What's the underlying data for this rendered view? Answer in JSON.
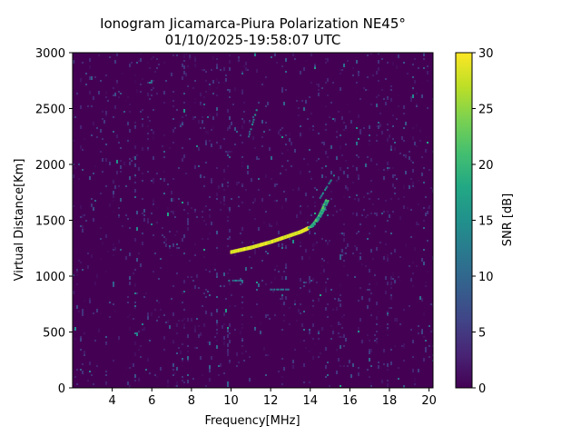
{
  "chart_data": {
    "type": "heatmap",
    "title": "Ionogram Jicamarca-Piura Polarization NE45°",
    "subtitle": "01/10/2025-19:58:07 UTC",
    "xlabel": "Frequency[MHz]",
    "ylabel": "Virtual Distance[Km]",
    "xlim": [
      2.0,
      20.2
    ],
    "ylim": [
      0,
      3000
    ],
    "xticks": [
      4,
      6,
      8,
      10,
      12,
      14,
      16,
      18,
      20
    ],
    "yticks": [
      0,
      500,
      1000,
      1500,
      2000,
      2500,
      3000
    ],
    "colorbar": {
      "label": "SNR [dB]",
      "range": [
        0,
        30
      ],
      "ticks": [
        0,
        5,
        10,
        15,
        20,
        25,
        30
      ],
      "colormap": "viridis"
    },
    "background": "low SNR noise (0–5 dB) with vertical interference stripes",
    "trace": {
      "points": [
        [
          10.0,
          1215
        ],
        [
          10.5,
          1235
        ],
        [
          11.0,
          1255
        ],
        [
          11.5,
          1280
        ],
        [
          12.0,
          1305
        ],
        [
          12.5,
          1335
        ],
        [
          13.0,
          1365
        ],
        [
          13.5,
          1395
        ],
        [
          13.8,
          1420
        ],
        [
          14.0,
          1440
        ],
        [
          14.2,
          1480
        ],
        [
          14.4,
          1530
        ],
        [
          14.6,
          1600
        ],
        [
          14.8,
          1680
        ]
      ],
      "snr_db": 30
    },
    "secondary_echoes": [
      {
        "freq": [
          9.9,
          10.6
        ],
        "range": 960,
        "snr_db": 8
      },
      {
        "freq": [
          12.0,
          12.9
        ],
        "range": 880,
        "snr_db": 8
      },
      {
        "freq": [
          10.9,
          11.4
        ],
        "range": [
          2250,
          2550
        ],
        "snr_db": 10
      },
      {
        "freq": [
          14.5,
          15.2
        ],
        "range": [
          1700,
          1900
        ],
        "snr_db": 10
      }
    ],
    "colors": {
      "low": "#440154",
      "mid": "#21918c",
      "high": "#fde725"
    }
  }
}
